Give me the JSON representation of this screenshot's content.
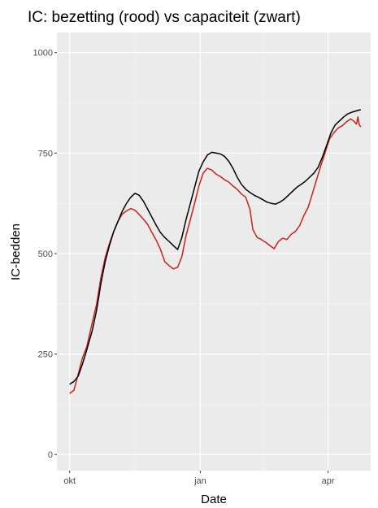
{
  "chart_data": {
    "type": "line",
    "title": "IC: bezetting (rood) vs capaciteit (zwart)",
    "xlabel": "Date",
    "ylabel": "IC-bedden",
    "x_ticks": [
      {
        "label": "okt",
        "date": "2020-10-01"
      },
      {
        "label": "jan",
        "date": "2021-01-01"
      },
      {
        "label": "apr",
        "date": "2021-04-01"
      }
    ],
    "xlim": [
      "2020-09-22",
      "2021-05-01"
    ],
    "ylim": [
      -40,
      1050
    ],
    "y_ticks": [
      0,
      250,
      500,
      750,
      1000
    ],
    "grid": true,
    "panel_background": "#ebebeb",
    "series": [
      {
        "name": "bezetting",
        "color": "#c8211b",
        "points": [
          [
            "2020-10-01",
            152
          ],
          [
            "2020-10-04",
            160
          ],
          [
            "2020-10-07",
            200
          ],
          [
            "2020-10-10",
            240
          ],
          [
            "2020-10-13",
            268
          ],
          [
            "2020-10-17",
            330
          ],
          [
            "2020-10-20",
            375
          ],
          [
            "2020-10-23",
            440
          ],
          [
            "2020-10-26",
            490
          ],
          [
            "2020-10-29",
            525
          ],
          [
            "2020-11-01",
            555
          ],
          [
            "2020-11-04",
            580
          ],
          [
            "2020-11-07",
            598
          ],
          [
            "2020-11-10",
            606
          ],
          [
            "2020-11-13",
            612
          ],
          [
            "2020-11-16",
            608
          ],
          [
            "2020-11-19",
            597
          ],
          [
            "2020-11-22",
            585
          ],
          [
            "2020-11-25",
            572
          ],
          [
            "2020-11-28",
            552
          ],
          [
            "2020-12-01",
            533
          ],
          [
            "2020-12-04",
            510
          ],
          [
            "2020-12-07",
            480
          ],
          [
            "2020-12-10",
            470
          ],
          [
            "2020-12-13",
            462
          ],
          [
            "2020-12-16",
            466
          ],
          [
            "2020-12-19",
            492
          ],
          [
            "2020-12-22",
            545
          ],
          [
            "2020-12-25",
            585
          ],
          [
            "2020-12-28",
            625
          ],
          [
            "2020-12-31",
            668
          ],
          [
            "2021-01-03",
            700
          ],
          [
            "2021-01-06",
            712
          ],
          [
            "2021-01-09",
            708
          ],
          [
            "2021-01-12",
            698
          ],
          [
            "2021-01-15",
            692
          ],
          [
            "2021-01-18",
            684
          ],
          [
            "2021-01-21",
            678
          ],
          [
            "2021-01-24",
            668
          ],
          [
            "2021-01-27",
            660
          ],
          [
            "2021-01-30",
            648
          ],
          [
            "2021-02-02",
            640
          ],
          [
            "2021-02-05",
            610
          ],
          [
            "2021-02-07",
            560
          ],
          [
            "2021-02-10",
            540
          ],
          [
            "2021-02-13",
            535
          ],
          [
            "2021-02-16",
            528
          ],
          [
            "2021-02-19",
            520
          ],
          [
            "2021-02-22",
            512
          ],
          [
            "2021-02-25",
            530
          ],
          [
            "2021-02-28",
            538
          ],
          [
            "2021-03-03",
            535
          ],
          [
            "2021-03-06",
            548
          ],
          [
            "2021-03-09",
            555
          ],
          [
            "2021-03-12",
            570
          ],
          [
            "2021-03-15",
            595
          ],
          [
            "2021-03-18",
            615
          ],
          [
            "2021-03-21",
            650
          ],
          [
            "2021-03-24",
            685
          ],
          [
            "2021-03-27",
            720
          ],
          [
            "2021-03-30",
            752
          ],
          [
            "2021-04-02",
            785
          ],
          [
            "2021-04-05",
            800
          ],
          [
            "2021-04-08",
            812
          ],
          [
            "2021-04-11",
            818
          ],
          [
            "2021-04-14",
            828
          ],
          [
            "2021-04-17",
            835
          ],
          [
            "2021-04-19",
            830
          ],
          [
            "2021-04-21",
            822
          ],
          [
            "2021-04-22",
            840
          ],
          [
            "2021-04-23",
            820
          ],
          [
            "2021-04-24",
            815
          ]
        ]
      },
      {
        "name": "capaciteit",
        "color": "#000000",
        "points": [
          [
            "2020-10-01",
            175
          ],
          [
            "2020-10-04",
            182
          ],
          [
            "2020-10-07",
            195
          ],
          [
            "2020-10-10",
            225
          ],
          [
            "2020-10-13",
            260
          ],
          [
            "2020-10-17",
            310
          ],
          [
            "2020-10-20",
            360
          ],
          [
            "2020-10-23",
            425
          ],
          [
            "2020-10-26",
            480
          ],
          [
            "2020-10-29",
            520
          ],
          [
            "2020-11-01",
            555
          ],
          [
            "2020-11-04",
            580
          ],
          [
            "2020-11-07",
            605
          ],
          [
            "2020-11-10",
            625
          ],
          [
            "2020-11-13",
            640
          ],
          [
            "2020-11-16",
            650
          ],
          [
            "2020-11-19",
            645
          ],
          [
            "2020-11-22",
            630
          ],
          [
            "2020-11-25",
            610
          ],
          [
            "2020-11-28",
            590
          ],
          [
            "2020-12-01",
            570
          ],
          [
            "2020-12-04",
            552
          ],
          [
            "2020-12-07",
            540
          ],
          [
            "2020-12-10",
            530
          ],
          [
            "2020-12-13",
            520
          ],
          [
            "2020-12-16",
            510
          ],
          [
            "2020-12-19",
            540
          ],
          [
            "2020-12-22",
            585
          ],
          [
            "2020-12-25",
            625
          ],
          [
            "2020-12-28",
            665
          ],
          [
            "2020-12-31",
            705
          ],
          [
            "2021-01-03",
            728
          ],
          [
            "2021-01-06",
            745
          ],
          [
            "2021-01-09",
            752
          ],
          [
            "2021-01-12",
            750
          ],
          [
            "2021-01-15",
            748
          ],
          [
            "2021-01-18",
            742
          ],
          [
            "2021-01-21",
            730
          ],
          [
            "2021-01-24",
            712
          ],
          [
            "2021-01-27",
            690
          ],
          [
            "2021-01-30",
            672
          ],
          [
            "2021-02-02",
            660
          ],
          [
            "2021-02-05",
            652
          ],
          [
            "2021-02-08",
            645
          ],
          [
            "2021-02-11",
            640
          ],
          [
            "2021-02-14",
            634
          ],
          [
            "2021-02-17",
            628
          ],
          [
            "2021-02-20",
            625
          ],
          [
            "2021-02-23",
            623
          ],
          [
            "2021-02-26",
            628
          ],
          [
            "2021-03-01",
            635
          ],
          [
            "2021-03-04",
            645
          ],
          [
            "2021-03-07",
            655
          ],
          [
            "2021-03-10",
            665
          ],
          [
            "2021-03-13",
            672
          ],
          [
            "2021-03-16",
            680
          ],
          [
            "2021-03-19",
            690
          ],
          [
            "2021-03-22",
            700
          ],
          [
            "2021-03-25",
            715
          ],
          [
            "2021-03-28",
            740
          ],
          [
            "2021-03-31",
            770
          ],
          [
            "2021-04-03",
            800
          ],
          [
            "2021-04-06",
            820
          ],
          [
            "2021-04-09",
            830
          ],
          [
            "2021-04-12",
            840
          ],
          [
            "2021-04-15",
            848
          ],
          [
            "2021-04-18",
            852
          ],
          [
            "2021-04-21",
            855
          ],
          [
            "2021-04-24",
            858
          ]
        ]
      }
    ]
  }
}
